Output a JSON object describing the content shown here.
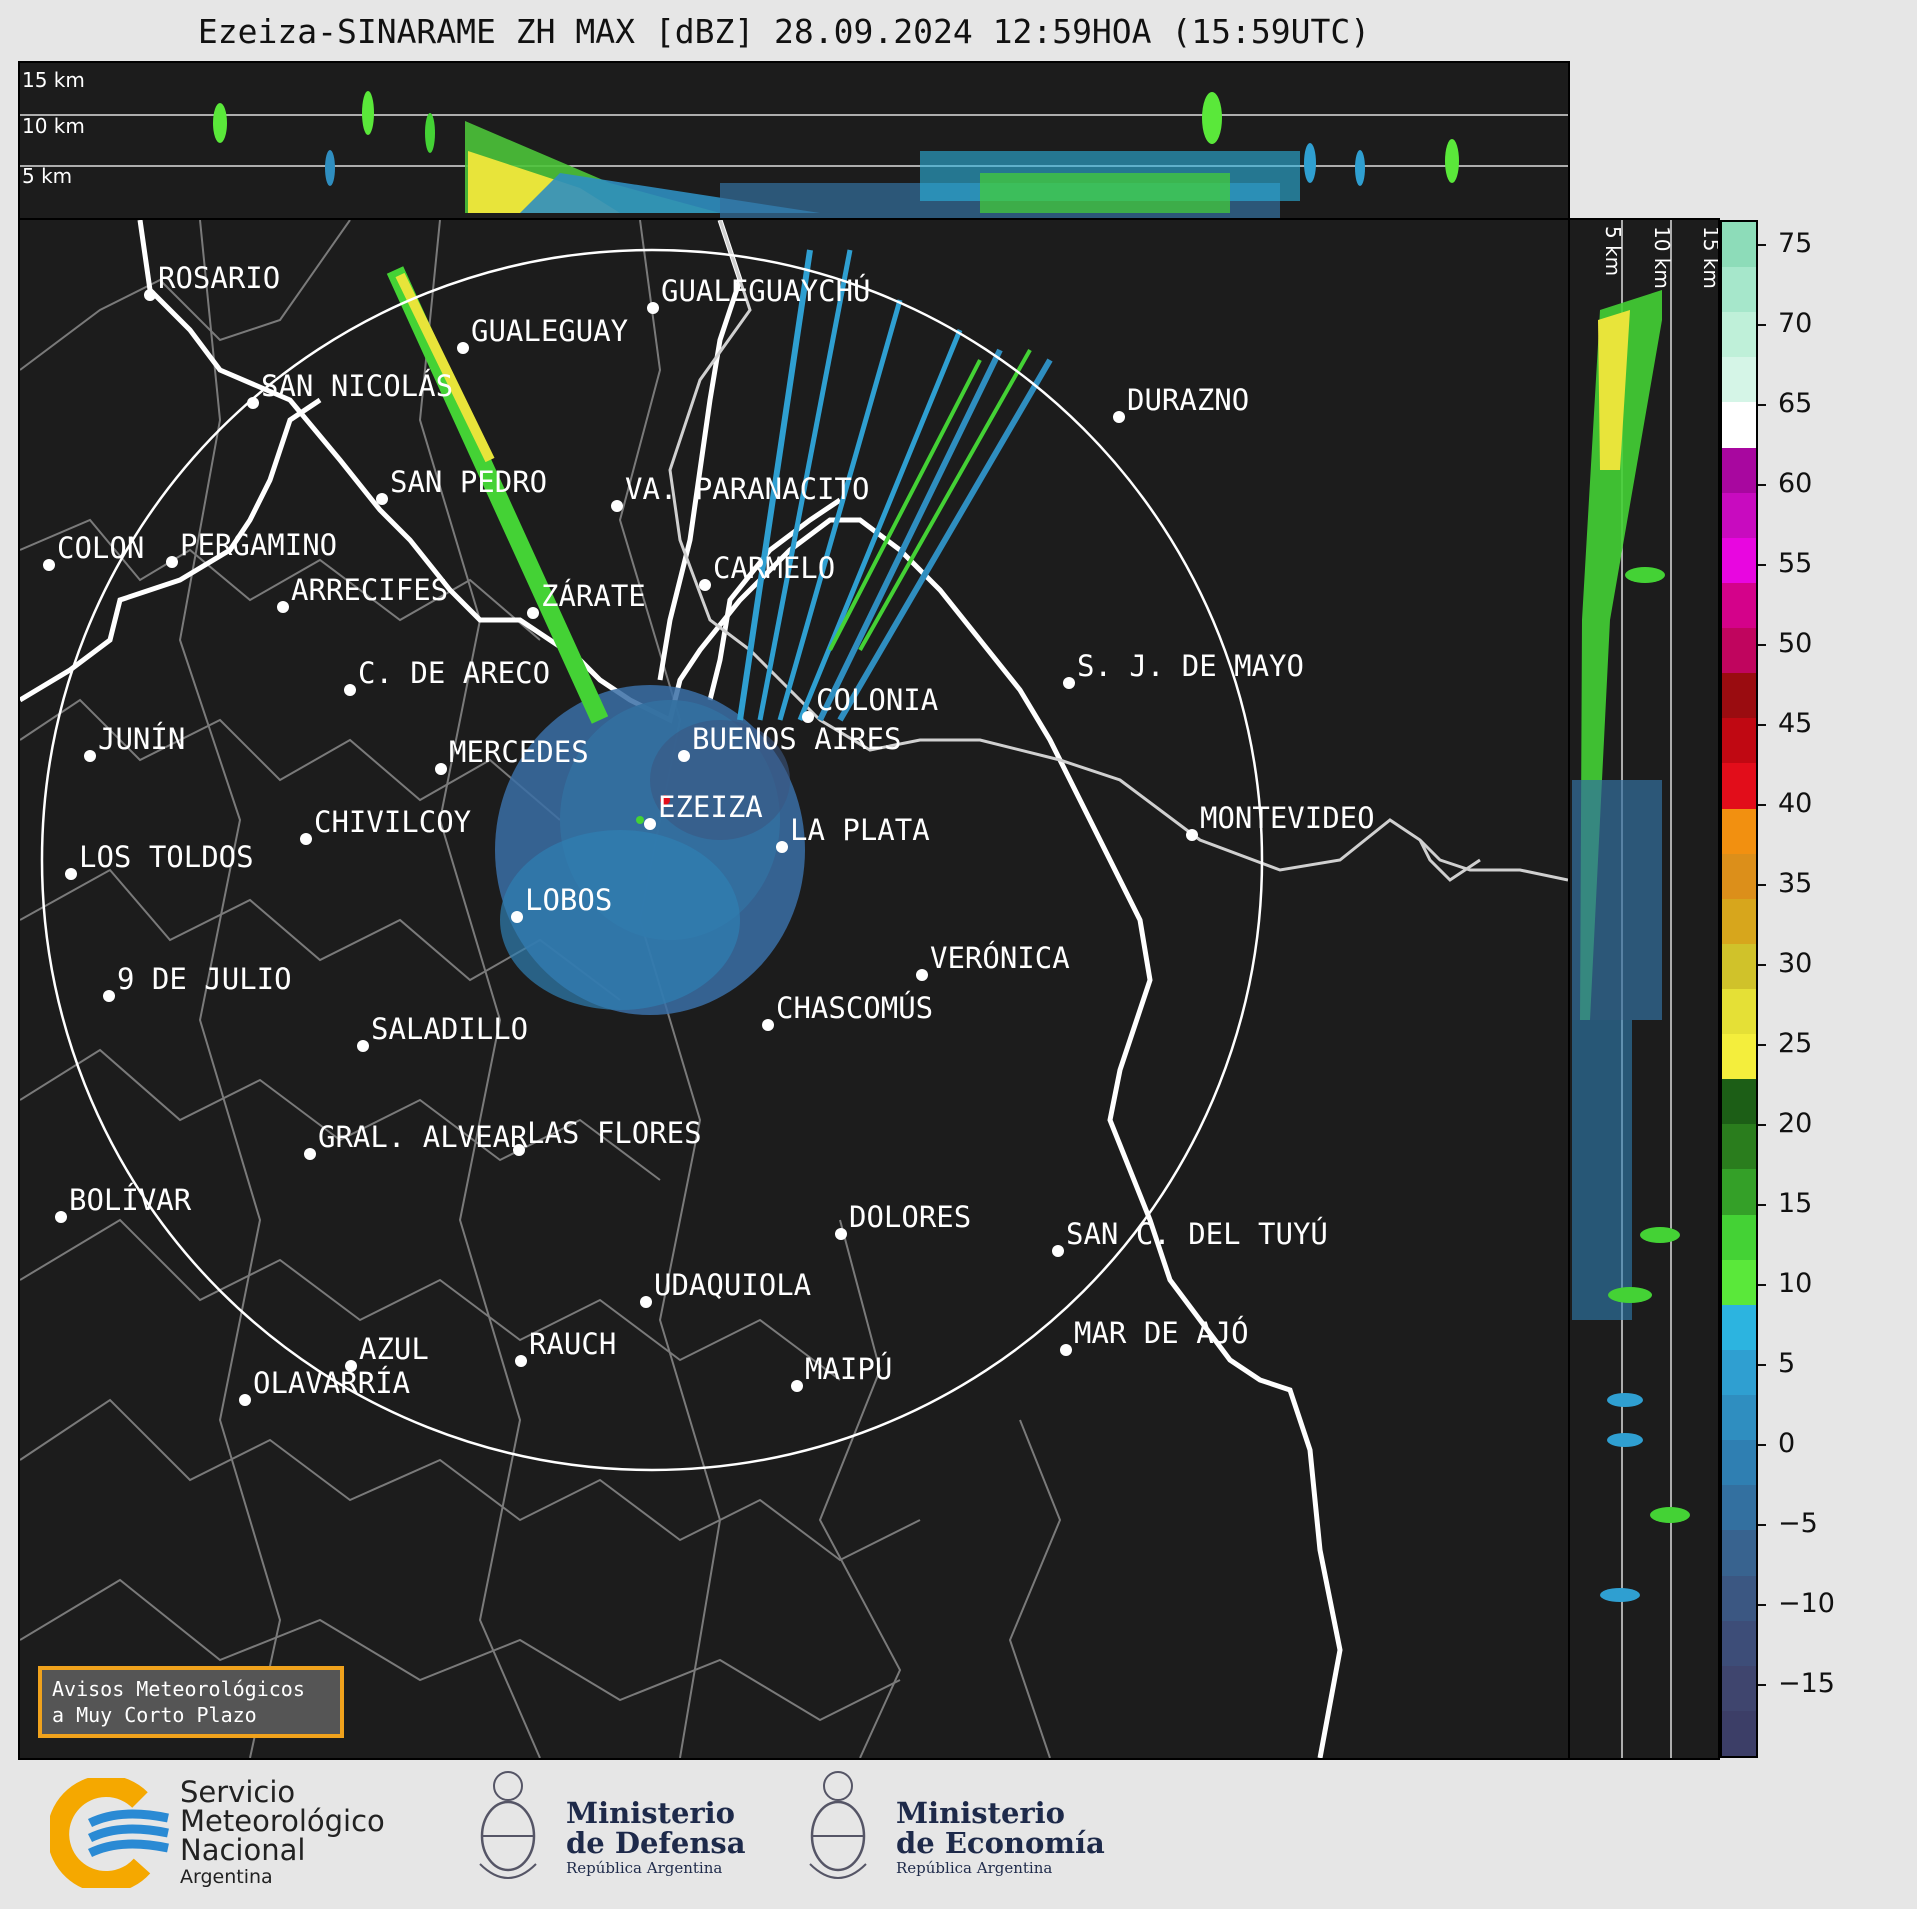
{
  "title": "Ezeiza-SINARAME ZH MAX [dBZ] 28.09.2024 12:59HOA (15:59UTC)",
  "top_panel": {
    "height_labels": [
      "15 km",
      "10 km",
      "5 km"
    ]
  },
  "side_panel": {
    "height_labels": [
      "5 km",
      "10 km",
      "15 km"
    ]
  },
  "colorbar": {
    "ticks": [
      "75",
      "70",
      "65",
      "60",
      "55",
      "50",
      "45",
      "40",
      "35",
      "30",
      "25",
      "20",
      "15",
      "10",
      "5",
      "0",
      "−5",
      "−10",
      "−15"
    ],
    "colors": [
      "#8ddcb9",
      "#a6e7cb",
      "#bff0d9",
      "#d5f5e7",
      "#ffffff",
      "#a8079f",
      "#c80bbf",
      "#e806e0",
      "#d4028a",
      "#c0055e",
      "#9a0c10",
      "#c00812",
      "#e20d1a",
      "#f29010",
      "#dc8f1a",
      "#d7a61c",
      "#d0c22a",
      "#e5e036",
      "#f4ee3c",
      "#1c5e16",
      "#2a7d1d",
      "#34a028",
      "#44d235",
      "#5ae83a",
      "#2cb4e0",
      "#2f9fd1",
      "#2f8ec0",
      "#2f7fb2",
      "#3370a0",
      "#38638f",
      "#3b5782",
      "#3d4d78",
      "#3f456e",
      "#3c3e67"
    ]
  },
  "cities": [
    {
      "name": "ROSARIO"
    },
    {
      "name": "GUALEGUAYCHÚ"
    },
    {
      "name": "GUALEGUAY"
    },
    {
      "name": "SAN NICOLÁS"
    },
    {
      "name": "DURAZNO"
    },
    {
      "name": "SAN PEDRO"
    },
    {
      "name": "VA. PARANACITO"
    },
    {
      "name": "COLON"
    },
    {
      "name": "PERGAMINO"
    },
    {
      "name": "CARMELO"
    },
    {
      "name": "ARRECIFES"
    },
    {
      "name": "ZÁRATE"
    },
    {
      "name": "S. J. DE MAYO"
    },
    {
      "name": "C. DE ARECO"
    },
    {
      "name": "COLONIA"
    },
    {
      "name": "BUENOS AIRES"
    },
    {
      "name": "JUNÍN"
    },
    {
      "name": "MERCEDES"
    },
    {
      "name": "EZEIZA"
    },
    {
      "name": "MONTEVIDEO"
    },
    {
      "name": "CHIVILCOY"
    },
    {
      "name": "LA PLATA"
    },
    {
      "name": "LOS TOLDOS"
    },
    {
      "name": "LOBOS"
    },
    {
      "name": "VERÓNICA"
    },
    {
      "name": "9 DE JULIO"
    },
    {
      "name": "CHASCOMÚS"
    },
    {
      "name": "SALADILLO"
    },
    {
      "name": "GRAL. ALVEAR"
    },
    {
      "name": "LAS FLORES"
    },
    {
      "name": "BOLÍVAR"
    },
    {
      "name": "DOLORES"
    },
    {
      "name": "SAN C. DEL TUYÚ"
    },
    {
      "name": "UDAQUIOLA"
    },
    {
      "name": "MAR DE AJÓ"
    },
    {
      "name": "AZUL"
    },
    {
      "name": "RAUCH"
    },
    {
      "name": "OLAVARRÍA"
    },
    {
      "name": "MAIPÚ"
    }
  ],
  "warning_box": {
    "text": "Avisos Meteorológicos\na Muy Corto Plazo"
  },
  "logos": {
    "smn": {
      "line1": "Servicio",
      "line2": "Meteorológico",
      "line3": "Nacional",
      "line4": "Argentina"
    },
    "defensa": {
      "line1": "Ministerio",
      "line2": "de Defensa",
      "line3": "República Argentina"
    },
    "economia": {
      "line1": "Ministerio",
      "line2": "de Economía",
      "line3": "República Argentina"
    }
  }
}
